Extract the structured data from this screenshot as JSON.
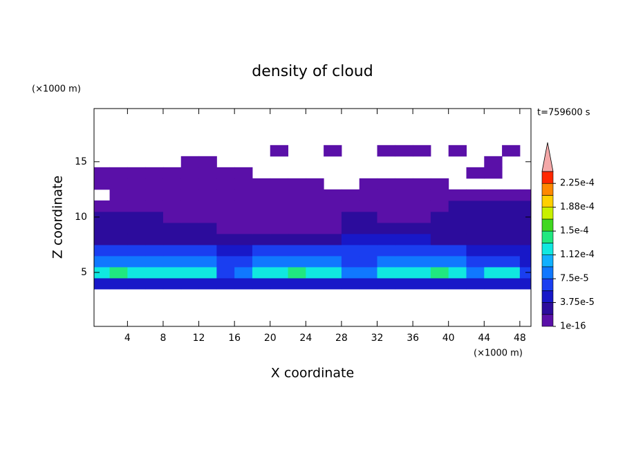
{
  "chart_data": {
    "type": "contour",
    "title": "density of cloud",
    "x_label": "X coordinate",
    "y_label": "Z coordinate",
    "x_unit": "(×1000 m)",
    "y_unit": "(×1000 m)",
    "annotation": "t=759600 s",
    "xlim": [
      0.25,
      49.25
    ],
    "ylim": [
      0.125,
      19.8
    ],
    "xticks": [
      4,
      8,
      12,
      16,
      20,
      24,
      28,
      32,
      36,
      40,
      44,
      48
    ],
    "yticks": [
      5,
      10,
      15
    ],
    "levels": [
      1e-16,
      1.875e-05,
      3.75e-05,
      5.625e-05,
      7.5e-05,
      9.375e-05,
      0.0001125,
      0.00013125,
      0.00015,
      0.00016875,
      0.0001875,
      0.00020625,
      0.000225,
      0.00024375
    ],
    "colors": [
      "#5a10a8",
      "#2c0c9c",
      "#1818c8",
      "#1a3ef0",
      "#1078ff",
      "#10b0ff",
      "#10e8e0",
      "#20e880",
      "#40d820",
      "#c8f000",
      "#ffd000",
      "#ff8800",
      "#ff2800"
    ],
    "over_color": "#f4a8a8",
    "colorbar_ticks": [
      1e-16,
      {
        "value": 3.75e-05,
        "label": "3.75e-5"
      },
      {
        "value": 7.5e-05,
        "label": "7.5e-5"
      },
      {
        "value": 0.0001125,
        "label": "1.12e-4"
      },
      {
        "value": 0.00015,
        "label": "1.5e-4"
      },
      {
        "value": 0.0001875,
        "label": "1.88e-4"
      },
      {
        "value": 0.000225,
        "label": "2.25e-4"
      }
    ],
    "field": {
      "x": [
        1,
        3,
        5,
        7,
        9,
        11,
        13,
        15,
        17,
        19,
        21,
        23,
        25,
        27,
        29,
        31,
        33,
        35,
        37,
        39,
        41,
        43,
        45,
        47,
        49
      ],
      "z": [
        4,
        5,
        6,
        7,
        8,
        9,
        10,
        11,
        12,
        13,
        14,
        15,
        16
      ],
      "values": [
        [
          4.5e-05,
          4.5e-05,
          4.5e-05,
          4.5e-05,
          4.5e-05,
          4.5e-05,
          4.5e-05,
          4.5e-05,
          4.5e-05,
          4.5e-05,
          4.5e-05,
          4.5e-05,
          4.5e-05,
          4.5e-05,
          4.5e-05,
          4.5e-05,
          4.5e-05,
          4.5e-05,
          4.5e-05,
          4.5e-05,
          4.5e-05,
          4.5e-05,
          4.5e-05,
          4.5e-05,
          4.5e-05
        ],
        [
          0.00012,
          0.00014,
          0.00012,
          0.00012,
          0.00012,
          0.00012,
          0.00012,
          6.5e-05,
          8.5e-05,
          0.00012,
          0.00012,
          0.00014,
          0.00012,
          0.00012,
          8.5e-05,
          8.5e-05,
          0.00012,
          0.00012,
          0.00012,
          0.00014,
          0.00012,
          8.5e-05,
          0.00012,
          0.00012,
          6.5e-05
        ],
        [
          8.5e-05,
          8.5e-05,
          8.5e-05,
          8.5e-05,
          8.5e-05,
          8.5e-05,
          8.5e-05,
          6.5e-05,
          6.5e-05,
          8.5e-05,
          8.5e-05,
          8.5e-05,
          8.5e-05,
          8.5e-05,
          6.5e-05,
          6.5e-05,
          8.5e-05,
          8.5e-05,
          8.5e-05,
          8.5e-05,
          8.5e-05,
          6.5e-05,
          6.5e-05,
          6.5e-05,
          4.5e-05
        ],
        [
          6.5e-05,
          6.5e-05,
          6.5e-05,
          6.5e-05,
          6.5e-05,
          6.5e-05,
          6.5e-05,
          4.5e-05,
          4.5e-05,
          6.5e-05,
          6.5e-05,
          6.5e-05,
          6.5e-05,
          6.5e-05,
          6.5e-05,
          6.5e-05,
          6.5e-05,
          6.5e-05,
          6.5e-05,
          6.5e-05,
          6.5e-05,
          4.5e-05,
          4.5e-05,
          4.5e-05,
          4.5e-05
        ],
        [
          2.5e-05,
          2.5e-05,
          2.5e-05,
          2.5e-05,
          2.5e-05,
          2.5e-05,
          2.5e-05,
          2.5e-05,
          2.5e-05,
          2.5e-05,
          2.5e-05,
          2.5e-05,
          2.5e-05,
          2.5e-05,
          4.5e-05,
          4.5e-05,
          4.5e-05,
          4.5e-05,
          4.5e-05,
          2.5e-05,
          2.5e-05,
          2.5e-05,
          2.5e-05,
          2.5e-05,
          2.5e-05
        ],
        [
          2.5e-05,
          2.5e-05,
          2.5e-05,
          2.5e-05,
          2.5e-05,
          2.5e-05,
          2.5e-05,
          1e-05,
          1e-05,
          1e-05,
          1e-05,
          1e-05,
          1e-05,
          1e-05,
          2.5e-05,
          2.5e-05,
          2.5e-05,
          2.5e-05,
          2.5e-05,
          2.5e-05,
          2.5e-05,
          2.5e-05,
          2.5e-05,
          2.5e-05,
          2.5e-05
        ],
        [
          2.5e-05,
          2.5e-05,
          2.5e-05,
          2.5e-05,
          1e-05,
          1e-05,
          1e-05,
          1e-05,
          1e-05,
          1e-05,
          1e-05,
          1e-05,
          1e-05,
          1e-05,
          2.5e-05,
          2.5e-05,
          1e-05,
          1e-05,
          1e-05,
          2.5e-05,
          2.5e-05,
          2.5e-05,
          2.5e-05,
          2.5e-05,
          2.5e-05
        ],
        [
          1e-05,
          1e-05,
          1e-05,
          1e-05,
          1e-05,
          1e-05,
          1e-05,
          1e-05,
          1e-05,
          1e-05,
          1e-05,
          1e-05,
          1e-05,
          1e-05,
          1e-05,
          1e-05,
          1e-05,
          1e-05,
          1e-05,
          1e-05,
          2.5e-05,
          2.5e-05,
          2.5e-05,
          2.5e-05,
          2.5e-05
        ],
        [
          null,
          1e-05,
          1e-05,
          1e-05,
          1e-05,
          1e-05,
          1e-05,
          1e-05,
          1e-05,
          1e-05,
          1e-05,
          1e-05,
          1e-05,
          1e-05,
          1e-05,
          1e-05,
          1e-05,
          1e-05,
          1e-05,
          1e-05,
          1e-05,
          1e-05,
          1e-05,
          1e-05,
          1e-05
        ],
        [
          1e-05,
          1e-05,
          1e-05,
          1e-05,
          1e-05,
          1e-05,
          1e-05,
          1e-05,
          1e-05,
          1e-05,
          1e-05,
          1e-05,
          1e-05,
          null,
          null,
          1e-05,
          1e-05,
          1e-05,
          1e-05,
          1e-05,
          null,
          null,
          null,
          null,
          null
        ],
        [
          1e-05,
          1e-05,
          1e-05,
          1e-05,
          1e-05,
          1e-05,
          1e-05,
          1e-05,
          1e-05,
          null,
          null,
          null,
          null,
          null,
          null,
          null,
          null,
          null,
          null,
          null,
          null,
          1e-05,
          1e-05,
          null,
          null
        ],
        [
          null,
          null,
          null,
          null,
          null,
          1e-05,
          1e-05,
          null,
          null,
          null,
          null,
          null,
          null,
          null,
          null,
          null,
          null,
          null,
          null,
          null,
          null,
          null,
          1e-05,
          null,
          null
        ],
        [
          null,
          null,
          null,
          null,
          null,
          null,
          null,
          null,
          null,
          null,
          1e-05,
          null,
          null,
          1e-05,
          null,
          null,
          1e-05,
          1e-05,
          1e-05,
          null,
          1e-05,
          null,
          null,
          1e-05,
          null
        ]
      ]
    }
  }
}
